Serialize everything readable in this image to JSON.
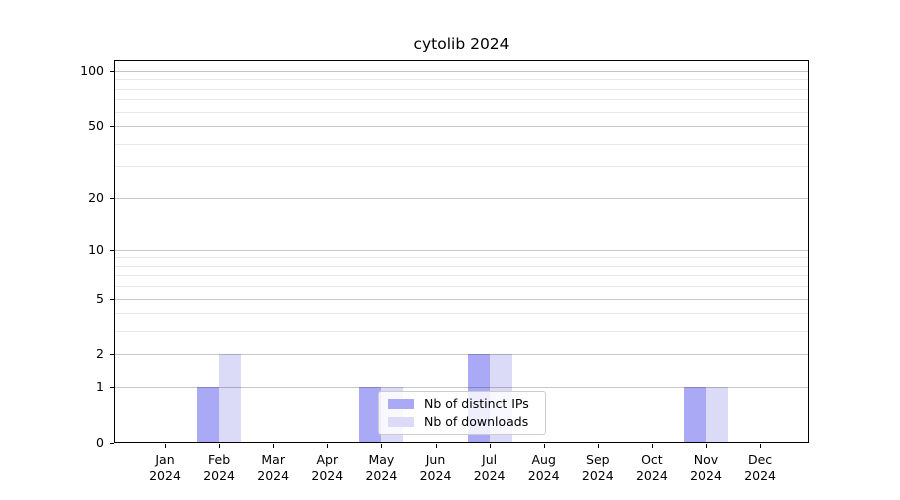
{
  "chart_data": {
    "type": "bar",
    "title": "cytolib 2024",
    "categories": [
      "Jan 2024",
      "Feb 2024",
      "Mar 2024",
      "Apr 2024",
      "May 2024",
      "Jun 2024",
      "Jul 2024",
      "Aug 2024",
      "Sep 2024",
      "Oct 2024",
      "Nov 2024",
      "Dec 2024"
    ],
    "series": [
      {
        "name": "Nb of distinct IPs",
        "color": "#a9a9f6",
        "values": [
          0,
          1,
          0,
          0,
          1,
          0,
          2,
          0,
          0,
          0,
          1,
          0
        ]
      },
      {
        "name": "Nb of downloads",
        "color": "#dbdbf8",
        "values": [
          0,
          2,
          0,
          0,
          1,
          0,
          2,
          0,
          0,
          0,
          1,
          0
        ]
      }
    ],
    "yscale": "log1p",
    "ylim": [
      0,
      115
    ],
    "yticks": [
      0,
      1,
      2,
      5,
      10,
      20,
      50,
      100
    ],
    "yticks_minor": [
      3,
      4,
      6,
      7,
      8,
      9,
      30,
      40,
      60,
      70,
      80,
      90
    ],
    "grid": "horizontal",
    "legend_position": "inside lower-center"
  },
  "colors": {
    "background": "#ffffff",
    "axis": "#000000",
    "grid_major": "rgba(0,0,0,0.22)",
    "grid_minor": "rgba(0,0,0,0.09)",
    "legend_border": "#cccccc",
    "legend_background": "rgba(255,255,255,0.8)"
  }
}
